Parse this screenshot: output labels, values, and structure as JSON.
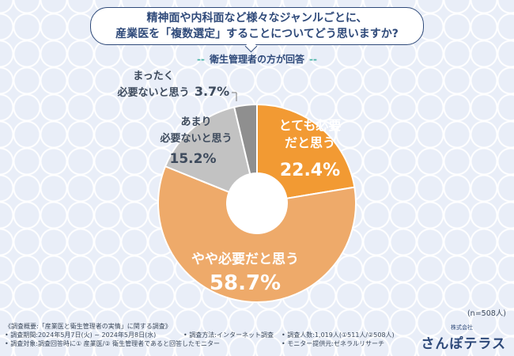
{
  "question": {
    "line1": "精神面や内科面など様々なジャンルごとに、",
    "line2": "産業医を「複数選定」することについてどう思いますか?"
  },
  "respondent": "衛生管理者の方が回答",
  "chart_data": {
    "type": "pie",
    "title": "精神面や内科面など様々なジャンルごとに、産業医を「複数選定」することについてどう思いますか?",
    "subtitle": "衛生管理者の方が回答",
    "slices": [
      {
        "label": "とても必要だと思う",
        "value": 22.4,
        "value_label": "22.4%",
        "color": "#f29a33"
      },
      {
        "label": "やや必要だと思う",
        "value": 58.7,
        "value_label": "58.7%",
        "color": "#eeaa6a"
      },
      {
        "label": "あまり必要ないと思う",
        "value": 15.2,
        "value_label": "15.2%",
        "color": "#c2c2c2"
      },
      {
        "label": "まったく必要ないと思う",
        "value": 3.7,
        "value_label": "3.7%",
        "color": "#8f8f8f"
      }
    ],
    "donut": true,
    "start": "12 o'clock",
    "direction": "clockwise",
    "legend": "none (labels on slices)"
  },
  "labels": {
    "very_need_1": "とても必要",
    "very_need_2": "だと思う",
    "very_need_pct": "22.4%",
    "somewhat_need_1": "やや必要だと思う",
    "somewhat_need_pct": "58.7%",
    "not_much_1": "あまり",
    "not_much_2": "必要ないと思う",
    "not_much_pct": "15.2%",
    "not_at_all_1": "まったく",
    "not_at_all_2": "必要ないと思う",
    "not_at_all_pct": "3.7%"
  },
  "sample_size": "(n=508人)",
  "footer": {
    "overview": "《調査概要:「産業医と衛生管理者の実情」に関する調査》",
    "period": "• 調査期間:2024年5月7日(火) ~ 2024年5月8日(水)",
    "method": "• 調査方法:インターネット調査",
    "count": "• 調査人数:1,019人(①511人/②508人)",
    "target": "• 調査対象:調査回答時に① 産業医/② 衛生管理者であると回答したモニター",
    "provider": "• モニター提供元:ゼネラルリサーチ"
  },
  "brand": {
    "small": "株式会社",
    "name": "さんぽテラス"
  }
}
